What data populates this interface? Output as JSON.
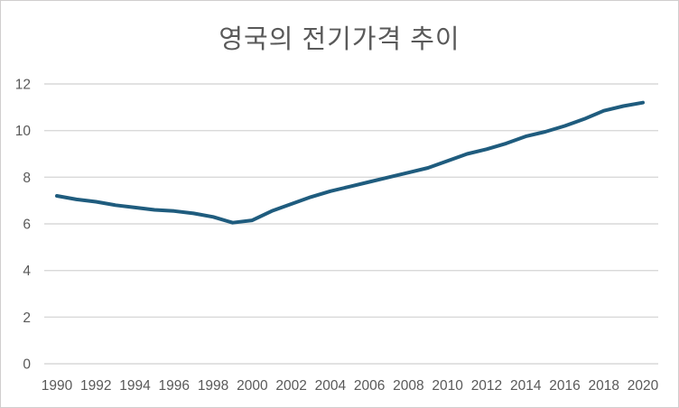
{
  "window": {
    "background_color": "#ffffff",
    "border_color": "#d0cece"
  },
  "chart_data": {
    "type": "line",
    "title": "영국의 전기가격 추이",
    "x": [
      1990,
      1991,
      1992,
      1993,
      1994,
      1995,
      1996,
      1997,
      1998,
      1999,
      2000,
      2001,
      2002,
      2003,
      2004,
      2005,
      2006,
      2007,
      2008,
      2009,
      2010,
      2011,
      2012,
      2013,
      2014,
      2015,
      2016,
      2017,
      2018,
      2019,
      2020
    ],
    "series": [
      {
        "name": "전기가격",
        "values": [
          7.2,
          7.05,
          6.95,
          6.8,
          6.7,
          6.6,
          6.55,
          6.45,
          6.3,
          6.05,
          6.15,
          6.55,
          6.85,
          7.15,
          7.4,
          7.6,
          7.8,
          8.0,
          8.2,
          8.4,
          8.7,
          9.0,
          9.2,
          9.45,
          9.75,
          9.95,
          10.2,
          10.5,
          10.85,
          11.05,
          11.2
        ]
      }
    ],
    "xticklabels": [
      "1990",
      "1992",
      "1994",
      "1996",
      "1998",
      "2000",
      "2002",
      "2004",
      "2006",
      "2008",
      "2010",
      "2012",
      "2014",
      "2016",
      "2018",
      "2020"
    ],
    "yticks": [
      0,
      2,
      4,
      6,
      8,
      10,
      12
    ],
    "ylim": [
      0,
      12
    ],
    "xlabel": "",
    "ylabel": "",
    "grid": "horizontal",
    "legend": "none",
    "style": {
      "line_color": "#1f5c7e",
      "line_width": 4,
      "gridline_color": "#d9d9d9",
      "tick_text_color": "#595959",
      "title_color": "#595959",
      "axis_font_size": 15.5,
      "title_font_size": 29
    }
  }
}
